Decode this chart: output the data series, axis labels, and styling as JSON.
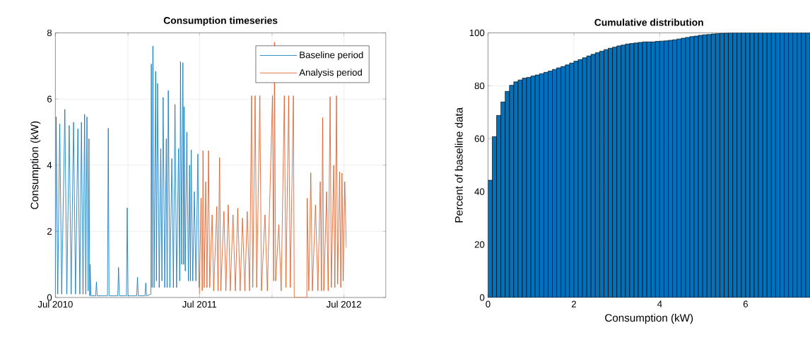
{
  "chart_data": [
    {
      "type": "line",
      "title": "Consumption timeseries",
      "ylabel": "Consumption (kW)",
      "xlim": [
        "2010-07-01",
        "2012-10-15"
      ],
      "ylim": [
        0,
        8
      ],
      "xticks": [
        {
          "value": "2010-07-01",
          "label": "Jul 2010"
        },
        {
          "value": "2011-01-01",
          "label": null
        },
        {
          "value": "2011-07-01",
          "label": "Jul 2011"
        },
        {
          "value": "2012-01-01",
          "label": null
        },
        {
          "value": "2012-07-01",
          "label": "Jul 2012"
        }
      ],
      "yticks": [
        0,
        2,
        4,
        6,
        8
      ],
      "grid": true,
      "legend": "top right",
      "series": [
        {
          "name": "Baseline period",
          "color": "#0072bd",
          "x": [
            "2010-07-01",
            "2010-07-03",
            "2010-07-07",
            "2010-07-12",
            "2010-07-17",
            "2010-07-25",
            "2010-07-30",
            "2010-08-05",
            "2010-08-10",
            "2010-08-16",
            "2010-08-21",
            "2010-08-27",
            "2010-09-01",
            "2010-09-05",
            "2010-09-09",
            "2010-09-13",
            "2010-09-16",
            "2010-09-19",
            "2010-09-22",
            "2010-09-24",
            "2010-09-26",
            "2010-09-27",
            "2010-09-29",
            "2010-10-11",
            "2010-10-13",
            "2010-10-15",
            "2010-11-10",
            "2010-11-12",
            "2010-11-14",
            "2010-12-06",
            "2010-12-08",
            "2010-12-10",
            "2010-12-28",
            "2010-12-30",
            "2011-01-01",
            "2011-01-23",
            "2011-01-25",
            "2011-01-27",
            "2011-02-13",
            "2011-02-15",
            "2011-02-17",
            "2011-02-28",
            "2011-03-01",
            "2011-03-03",
            "2011-03-05",
            "2011-03-08",
            "2011-03-12",
            "2011-03-14",
            "2011-03-17",
            "2011-03-21",
            "2011-03-25",
            "2011-03-28",
            "2011-03-31",
            "2011-04-04",
            "2011-04-08",
            "2011-04-10",
            "2011-04-13",
            "2011-04-17",
            "2011-04-22",
            "2011-04-26",
            "2011-04-30",
            "2011-05-04",
            "2011-05-09",
            "2011-05-12",
            "2011-05-14",
            "2011-05-17",
            "2011-05-20",
            "2011-05-22",
            "2011-05-23",
            "2011-05-26",
            "2011-05-30",
            "2011-06-03",
            "2011-06-06",
            "2011-06-08",
            "2011-06-10",
            "2011-06-14",
            "2011-06-18",
            "2011-06-22",
            "2011-06-27",
            "2011-06-30"
          ],
          "values": [
            0.1,
            5.46,
            0.1,
            5.25,
            0.1,
            5.69,
            0.1,
            5.2,
            0.1,
            5.3,
            0.1,
            5.1,
            0.1,
            5.3,
            0.1,
            5.54,
            0.1,
            5.46,
            0.2,
            4.8,
            0.05,
            1.0,
            0.05,
            0.05,
            0.47,
            0.05,
            0.05,
            5.12,
            0.05,
            0.05,
            0.91,
            0.05,
            0.05,
            2.71,
            0.05,
            0.05,
            0.61,
            0.05,
            0.05,
            0.44,
            0.05,
            0.1,
            7.06,
            0.3,
            7.6,
            0.3,
            6.84,
            0.5,
            6.47,
            0.3,
            4.5,
            0.5,
            6.05,
            0.3,
            4.8,
            0.3,
            6.26,
            0.3,
            4.2,
            0.3,
            5.84,
            0.3,
            4.5,
            0.5,
            7.13,
            1.0,
            7.1,
            1.0,
            5.77,
            0.8,
            5.0,
            0.5,
            4.0,
            0.5,
            4.46,
            0.5,
            3.2,
            0.5,
            4.34,
            0.3
          ]
        },
        {
          "name": "Analysis period",
          "color": "#d95319",
          "x": [
            "2011-07-01",
            "2011-07-05",
            "2011-07-08",
            "2011-07-10",
            "2011-07-13",
            "2011-07-17",
            "2011-07-20",
            "2011-07-24",
            "2011-07-27",
            "2011-08-02",
            "2011-08-06",
            "2011-08-14",
            "2011-08-17",
            "2011-08-21",
            "2011-08-24",
            "2011-09-01",
            "2011-09-06",
            "2011-09-12",
            "2011-09-17",
            "2011-09-24",
            "2011-09-30",
            "2011-10-06",
            "2011-10-12",
            "2011-10-18",
            "2011-10-24",
            "2011-10-30",
            "2011-11-05",
            "2011-11-10",
            "2011-11-13",
            "2011-11-19",
            "2011-11-23",
            "2011-12-01",
            "2011-12-05",
            "2011-12-14",
            "2011-12-20",
            "2012-01-02",
            "2012-01-05",
            "2012-01-07",
            "2012-01-10",
            "2012-01-18",
            "2012-01-24",
            "2012-02-01",
            "2012-02-05",
            "2012-02-12",
            "2012-02-16",
            "2012-02-24",
            "2012-02-26",
            "2012-03-29",
            "2012-03-30",
            "2012-04-03",
            "2012-04-08",
            "2012-04-12",
            "2012-04-20",
            "2012-04-26",
            "2012-05-02",
            "2012-05-05",
            "2012-05-08",
            "2012-05-11",
            "2012-05-18",
            "2012-05-22",
            "2012-05-27",
            "2012-05-30",
            "2012-06-05",
            "2012-06-08",
            "2012-06-12",
            "2012-06-15",
            "2012-06-20",
            "2012-06-23",
            "2012-06-26",
            "2012-06-29",
            "2012-07-03",
            "2012-07-07"
          ],
          "values": [
            0.1,
            3.0,
            0.2,
            4.44,
            0.3,
            3.5,
            0.3,
            4.44,
            0.3,
            2.5,
            0.2,
            2.75,
            0.2,
            4.23,
            0.2,
            2.6,
            0.2,
            2.8,
            0.2,
            2.5,
            0.2,
            2.7,
            0.2,
            2.4,
            0.2,
            2.6,
            0.2,
            6.1,
            0.3,
            6.1,
            0.3,
            6.1,
            0.2,
            2.5,
            0.2,
            6.1,
            0.5,
            7.72,
            0.5,
            2.2,
            0.2,
            6.1,
            0.3,
            6.1,
            0.3,
            6.1,
            0,
            0,
            3.0,
            0.2,
            3.77,
            0.2,
            2.8,
            0.2,
            3.5,
            0.2,
            5.44,
            0.2,
            3.2,
            0.2,
            6.07,
            0.3,
            4.0,
            0.3,
            6.1,
            0.4,
            3.8,
            0.3,
            3.76,
            0.5,
            3.5,
            1.5
          ]
        }
      ]
    },
    {
      "type": "histogram",
      "title": "Cumulative distribution",
      "xlabel": "Consumption (kW)",
      "ylabel": "Percent of baseline data",
      "xlim": [
        0,
        7.5
      ],
      "ylim": [
        0,
        100
      ],
      "xticks": [
        0,
        2,
        4,
        6
      ],
      "yticks": [
        0,
        20,
        40,
        60,
        80,
        100
      ],
      "grid": true,
      "color": "#0072bd",
      "bins": [
        0,
        0.1,
        0.2,
        0.3,
        0.4,
        0.5,
        0.6,
        0.7,
        0.8,
        0.9,
        1.0,
        1.1,
        1.2,
        1.3,
        1.4,
        1.5,
        1.6,
        1.7,
        1.8,
        1.9,
        2.0,
        2.1,
        2.2,
        2.3,
        2.4,
        2.5,
        2.6,
        2.7,
        2.8,
        2.9,
        3.0,
        3.1,
        3.2,
        3.3,
        3.4,
        3.5,
        3.6,
        3.7,
        3.8,
        3.9,
        4.0,
        4.1,
        4.2,
        4.3,
        4.4,
        4.5,
        4.6,
        4.7,
        4.8,
        4.9,
        5.0,
        5.1,
        5.2,
        5.3,
        5.4,
        5.5,
        5.6,
        5.7,
        5.8,
        5.9,
        6.0,
        6.1,
        6.2,
        6.3,
        6.4,
        6.5,
        6.6,
        6.7,
        6.8,
        6.9,
        7.0,
        7.1,
        7.2,
        7.3,
        7.4,
        7.5
      ],
      "values": [
        44.3,
        60.8,
        68.8,
        73.9,
        77.9,
        80.2,
        81.5,
        82.2,
        82.9,
        83.2,
        83.7,
        84.1,
        84.6,
        85.1,
        85.6,
        86.2,
        86.8,
        87.3,
        87.9,
        88.6,
        89.3,
        89.9,
        90.6,
        91.3,
        91.9,
        92.5,
        93.1,
        93.7,
        94.2,
        94.6,
        95.1,
        95.4,
        95.8,
        96.0,
        96.2,
        96.4,
        96.6,
        96.6,
        96.6,
        96.8,
        96.9,
        97.0,
        97.2,
        97.4,
        97.7,
        98.0,
        98.3,
        98.6,
        98.8,
        99.1,
        99.3,
        99.4,
        99.6,
        99.7,
        99.8,
        99.9,
        100,
        100,
        100,
        100,
        100,
        100,
        100,
        100,
        100,
        100,
        100,
        100,
        100,
        100,
        100,
        100,
        100,
        100,
        100
      ]
    }
  ]
}
